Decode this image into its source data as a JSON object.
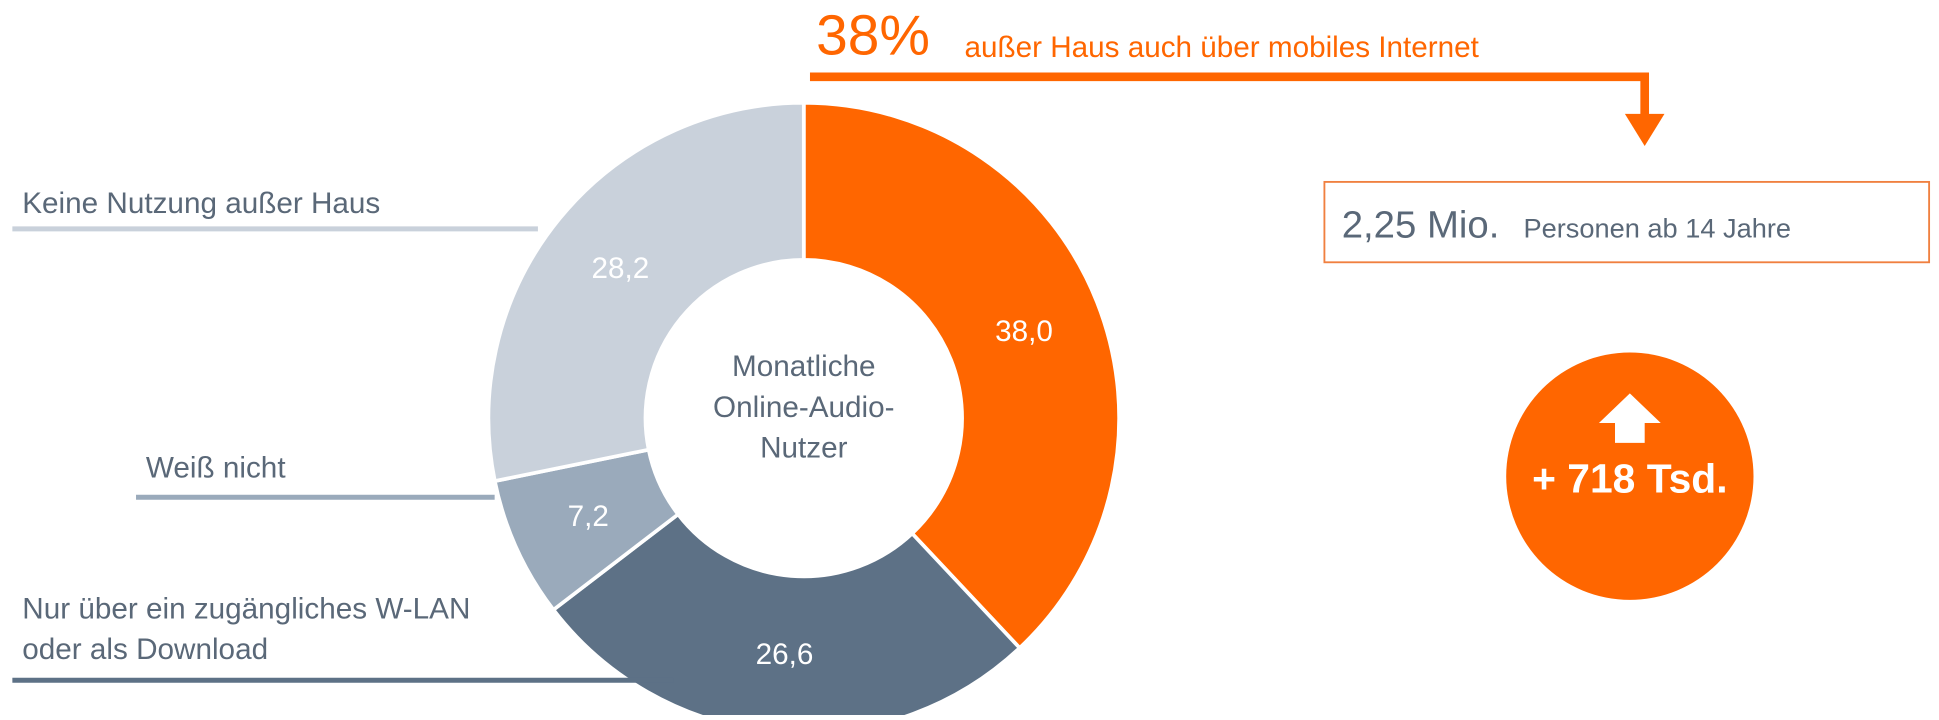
{
  "chart_data": {
    "type": "donut",
    "categories": [
      null,
      "Nur über ein zugängliches W-LAN oder als Download",
      "Weiß nicht",
      "Keine Nutzung außer Haus"
    ],
    "values": [
      38.0,
      26.6,
      7.2,
      28.2
    ],
    "value_labels": [
      "38,0",
      "26,6",
      "7,2",
      "28,2"
    ],
    "colors": [
      "#ff6600",
      "#5d7186",
      "#9aaabb",
      "#c9d1db"
    ],
    "center_label": "Monatliche Online-Audio-Nutzer",
    "annotations": {
      "headline_value": "38%",
      "headline_text": "außer Haus auch über mobiles Internet",
      "total_value": "2,25 Mio.",
      "total_text": "Personen ab 14 Jahre",
      "change": "+ 718 Tsd."
    }
  }
}
